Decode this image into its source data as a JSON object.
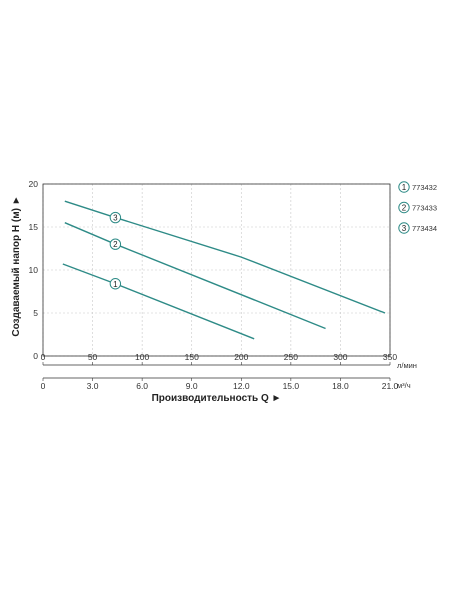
{
  "chart_data": {
    "type": "line",
    "ylabel": "Создаваемый напор H (м) ►",
    "xlabel": "Производительность Q ►",
    "x_unit_primary": "л/мин",
    "x_unit_secondary": "м³/ч",
    "xlim": [
      0,
      350
    ],
    "ylim": [
      0,
      20
    ],
    "x_ticks": [
      "0",
      "50",
      "100",
      "150",
      "200",
      "250",
      "300",
      "350"
    ],
    "x_ticks_secondary": [
      "0",
      "3.0",
      "6.0",
      "9.0",
      "12.0",
      "15.0",
      "18.0",
      "21.0"
    ],
    "y_ticks": [
      "0",
      "5",
      "10",
      "15",
      "20"
    ],
    "grid": true,
    "line_color": "#2e8b87",
    "series": [
      {
        "name": "773432",
        "marker": "1",
        "x": [
          20,
          73,
          213
        ],
        "y": [
          10.7,
          8.4,
          2.0
        ],
        "marker_at": 1
      },
      {
        "name": "773433",
        "marker": "2",
        "x": [
          22,
          73,
          285
        ],
        "y": [
          15.5,
          13.0,
          3.2
        ],
        "marker_at": 1
      },
      {
        "name": "773434",
        "marker": "3",
        "x": [
          22,
          73,
          200,
          345
        ],
        "y": [
          18.0,
          16.1,
          11.5,
          5.0
        ],
        "marker_at": 1
      }
    ],
    "legend": {
      "placement": "right",
      "entries": [
        {
          "marker": "1",
          "label": "773432"
        },
        {
          "marker": "2",
          "label": "773433"
        },
        {
          "marker": "3",
          "label": "773434"
        }
      ]
    }
  }
}
